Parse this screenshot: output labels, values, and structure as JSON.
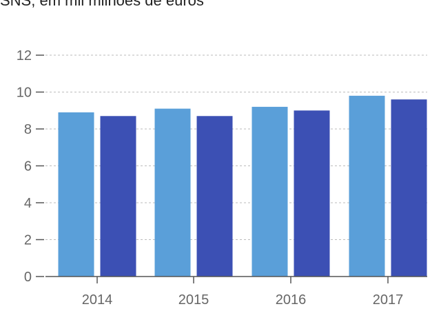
{
  "title": "SNS, em mil milhões de euros",
  "colors": {
    "series_1": "#5a9fd9",
    "series_2": "#3c50b4",
    "grid": "#bbbbbb",
    "axis": "#555555",
    "tick_text": "#666666"
  },
  "chart_data": {
    "type": "bar",
    "title": "SNS, em mil milhões de euros",
    "xlabel": "",
    "ylabel": "",
    "categories": [
      "2014",
      "2015",
      "2016",
      "2017"
    ],
    "series": [
      {
        "values": [
          8.9,
          9.1,
          9.2,
          9.8
        ]
      },
      {
        "values": [
          8.7,
          8.7,
          9.0,
          9.6
        ]
      }
    ],
    "ylim": [
      0,
      12
    ],
    "yticks": [
      0,
      2,
      4,
      6,
      8,
      10,
      12
    ],
    "grid": true,
    "grid_style": "dashed",
    "legend": "none"
  }
}
